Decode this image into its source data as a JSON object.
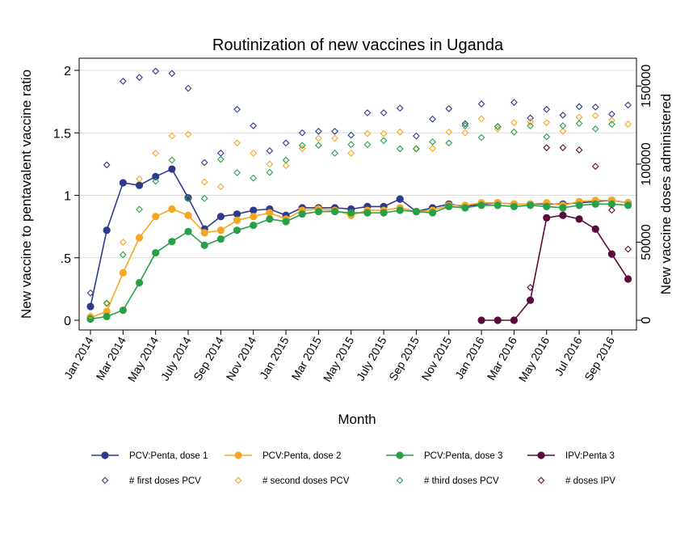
{
  "chart_data": {
    "type": "line",
    "title": "Routinization of new vaccines in Uganda",
    "xlabel": "Month",
    "ylabel": "New vaccine to pentavalent vaccine ratio",
    "y2label": "New vaccine doses administered",
    "ylim": [
      0,
      2
    ],
    "y2lim": [
      0,
      160000
    ],
    "yticks": [
      "0",
      ".5",
      "1",
      "1.5",
      "2"
    ],
    "yticks_values": [
      0,
      0.5,
      1,
      1.5,
      2
    ],
    "y2ticks": [
      "0",
      "50000",
      "100000",
      "150000"
    ],
    "y2ticks_values": [
      0,
      50000,
      100000,
      150000
    ],
    "grid": true,
    "legend_position": "bottom",
    "categories": [
      "Jan 2014",
      "Feb 2014",
      "Mar 2014",
      "Apr 2014",
      "May 2014",
      "Jun 2014",
      "July 2014",
      "Aug 2014",
      "Sep 2014",
      "Oct 2014",
      "Nov 2014",
      "Dec 2014",
      "Jan 2015",
      "Feb 2015",
      "Mar 2015",
      "Apr 2015",
      "May 2015",
      "Jun 2015",
      "July 2015",
      "Aug 2015",
      "Sep 2015",
      "Oct 2015",
      "Nov 2015",
      "Dec 2015",
      "Jan 2016",
      "Feb 2016",
      "Mar 2016",
      "Apr 2016",
      "May 2016",
      "Jun 2016",
      "Jul 2016",
      "Aug 2016",
      "Sep 2016",
      "Oct 2016"
    ],
    "xtick_labels": [
      "Jan 2014",
      "Mar 2014",
      "May 2014",
      "July 2014",
      "Sep 2014",
      "Nov 2014",
      "Jan 2015",
      "Mar 2015",
      "May 2015",
      "July 2015",
      "Sep 2015",
      "Nov 2015",
      "Jan 2016",
      "Mar 2016",
      "May 2016",
      "Jul 2016",
      "Sep 2016"
    ],
    "series": [
      {
        "name": "PCV:Penta, dose 1",
        "axis": "left",
        "style": "line",
        "color": "#2e3a8c",
        "values": [
          0.11,
          0.72,
          1.1,
          1.08,
          1.15,
          1.21,
          0.98,
          0.73,
          0.83,
          0.85,
          0.88,
          0.89,
          0.84,
          0.9,
          0.9,
          0.9,
          0.89,
          0.91,
          0.91,
          0.97,
          0.87,
          0.9,
          0.93,
          0.91,
          0.93,
          0.94,
          0.93,
          0.93,
          0.93,
          0.93,
          0.94,
          0.95,
          0.96,
          0.94
        ]
      },
      {
        "name": "PCV:Penta, dose 2",
        "axis": "left",
        "style": "line",
        "color": "#f5a623",
        "values": [
          0.02,
          0.07,
          0.38,
          0.66,
          0.83,
          0.89,
          0.84,
          0.7,
          0.72,
          0.8,
          0.83,
          0.86,
          0.81,
          0.88,
          0.89,
          0.88,
          0.84,
          0.88,
          0.88,
          0.9,
          0.87,
          0.88,
          0.92,
          0.92,
          0.94,
          0.94,
          0.93,
          0.93,
          0.94,
          0.92,
          0.95,
          0.96,
          0.96,
          0.94
        ]
      },
      {
        "name": "PCV:Penta, dose 3",
        "axis": "left",
        "style": "line",
        "color": "#27a048",
        "values": [
          0.01,
          0.03,
          0.08,
          0.3,
          0.54,
          0.63,
          0.71,
          0.6,
          0.65,
          0.72,
          0.76,
          0.81,
          0.79,
          0.85,
          0.87,
          0.87,
          0.86,
          0.86,
          0.86,
          0.88,
          0.87,
          0.86,
          0.91,
          0.9,
          0.92,
          0.92,
          0.91,
          0.92,
          0.91,
          0.9,
          0.92,
          0.93,
          0.93,
          0.92
        ]
      },
      {
        "name": "IPV:Penta 3",
        "axis": "left",
        "style": "line",
        "color": "#5c0a3c",
        "values": [
          null,
          null,
          null,
          null,
          null,
          null,
          null,
          null,
          null,
          null,
          null,
          null,
          null,
          null,
          null,
          null,
          null,
          null,
          null,
          null,
          null,
          null,
          null,
          null,
          0.0,
          0.0,
          0.0,
          0.16,
          0.82,
          0.84,
          0.81,
          0.73,
          0.53,
          0.33
        ]
      },
      {
        "name": "# first doses PCV",
        "axis": "right",
        "style": "hollow-diamond",
        "color": "#2e3a8c",
        "values": [
          17500,
          99500,
          153000,
          155500,
          159500,
          158000,
          148500,
          101000,
          107000,
          135000,
          124500,
          108500,
          113500,
          120000,
          121000,
          121000,
          118500,
          132800,
          132800,
          135800,
          118000,
          128800,
          135500,
          125800,
          138500,
          124000,
          139500,
          129500,
          135000,
          131300,
          136800,
          136500,
          132000,
          137800
        ]
      },
      {
        "name": "# second doses PCV",
        "axis": "right",
        "style": "hollow-diamond",
        "color": "#f5a623",
        "values": [
          3000,
          10500,
          50000,
          90500,
          107000,
          118000,
          119000,
          88500,
          85500,
          113500,
          107000,
          100000,
          99000,
          110000,
          116500,
          116500,
          107000,
          119500,
          119500,
          120500,
          109500,
          110000,
          120500,
          120000,
          129000,
          122500,
          126500,
          127000,
          126500,
          121000,
          130000,
          131000,
          128000,
          125500
        ]
      },
      {
        "name": "# third doses PCV",
        "axis": "right",
        "style": "hollow-diamond",
        "color": "#27a048",
        "values": [
          1500,
          11000,
          42000,
          71000,
          89000,
          102500,
          78000,
          78000,
          103000,
          94500,
          91000,
          94700,
          102500,
          112000,
          112000,
          107000,
          112500,
          112500,
          115000,
          109800,
          109900,
          114200,
          113500,
          124500,
          117000,
          124000,
          120500,
          124500,
          117500,
          124500,
          126000,
          122500,
          125500,
          null
        ]
      },
      {
        "name": "# doses IPV",
        "axis": "right",
        "style": "hollow-diamond",
        "color": "#5c0a3c",
        "values": [
          null,
          null,
          null,
          null,
          null,
          null,
          null,
          null,
          null,
          null,
          null,
          null,
          null,
          null,
          null,
          null,
          null,
          null,
          null,
          null,
          null,
          null,
          null,
          null,
          null,
          null,
          null,
          21000,
          110500,
          110500,
          109000,
          98500,
          70500,
          45500
        ]
      }
    ]
  }
}
